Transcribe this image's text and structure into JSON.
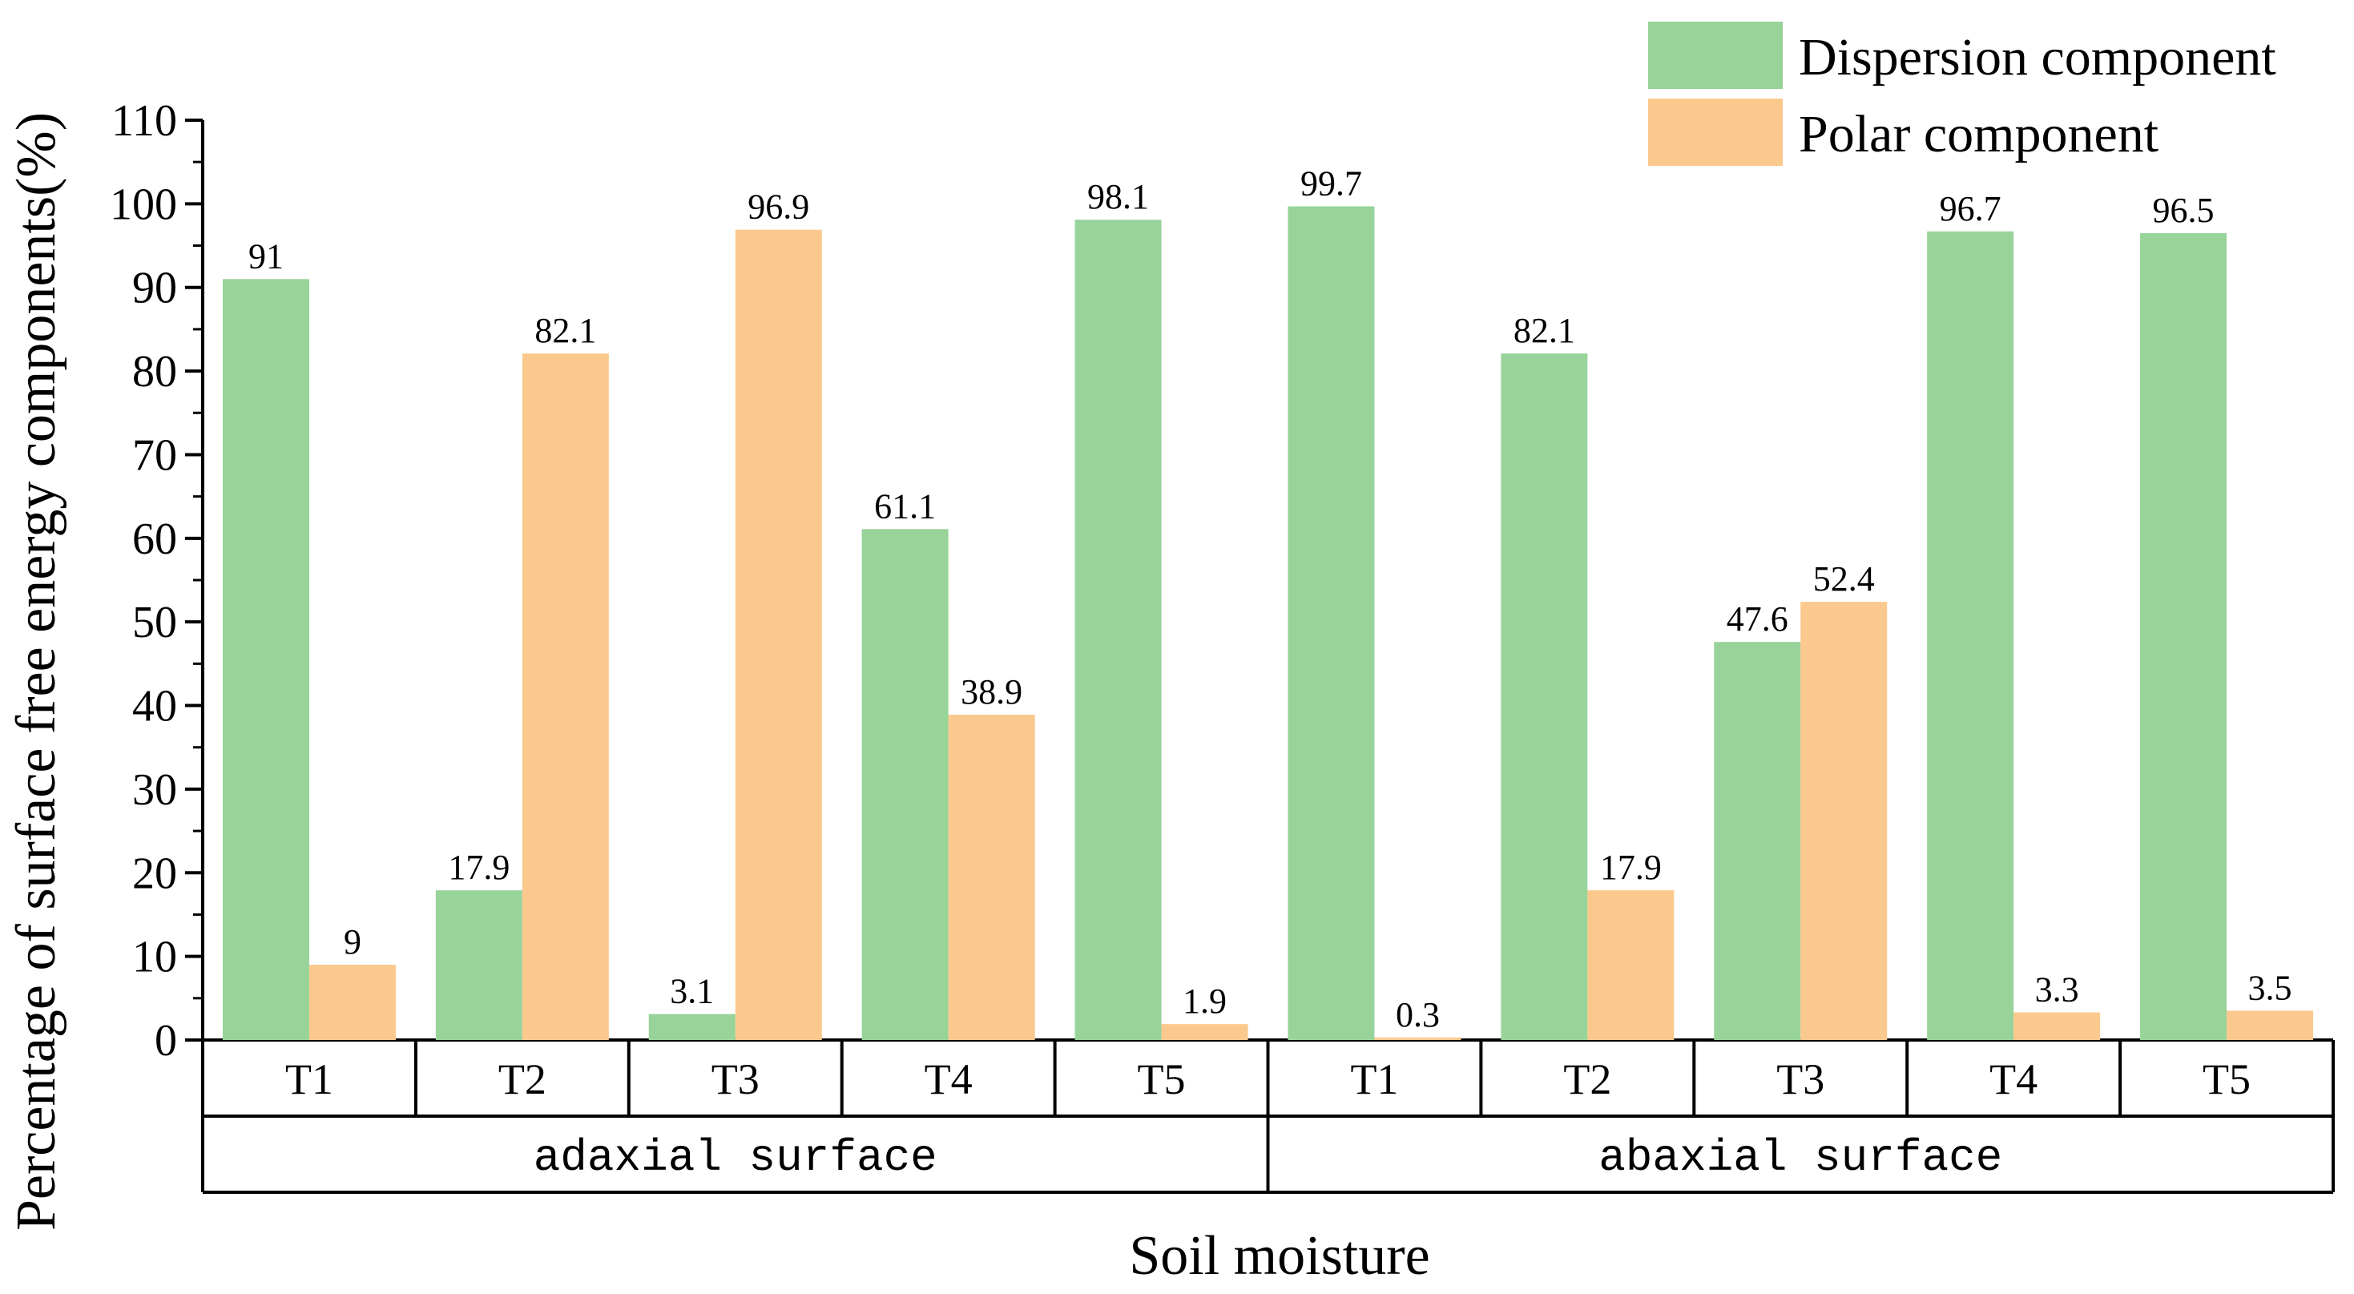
{
  "chart_data": {
    "type": "bar",
    "title": "",
    "xlabel": "Soil moisture",
    "ylabel": "Percentage of surface free energy components(%)",
    "ylim": [
      0,
      110
    ],
    "yticks": [
      0,
      10,
      20,
      30,
      40,
      50,
      60,
      70,
      80,
      90,
      100,
      110
    ],
    "legend_position": "top-right",
    "grid": false,
    "groups": [
      {
        "label": "adaxial surface",
        "categories": [
          "T1",
          "T2",
          "T3",
          "T4",
          "T5"
        ]
      },
      {
        "label": "abaxial surface",
        "categories": [
          "T1",
          "T2",
          "T3",
          "T4",
          "T5"
        ]
      }
    ],
    "series": [
      {
        "name": "Dispersion component",
        "color": "#98d39a",
        "values": [
          91,
          17.9,
          3.1,
          61.1,
          98.1,
          99.7,
          82.1,
          47.6,
          96.7,
          96.5
        ],
        "labels": [
          "91",
          "17.9",
          "3.1",
          "61.1",
          "98.1",
          "99.7",
          "82.1",
          "47.6",
          "96.7",
          "96.5"
        ]
      },
      {
        "name": "Polar component",
        "color": "#fbc98e",
        "values": [
          9,
          82.1,
          96.9,
          38.9,
          1.9,
          0.3,
          17.9,
          52.4,
          3.3,
          3.5
        ],
        "labels": [
          "9",
          "82.1",
          "96.9",
          "38.9",
          "1.9",
          "0.3",
          "17.9",
          "52.4",
          "3.3",
          "3.5"
        ]
      }
    ]
  }
}
